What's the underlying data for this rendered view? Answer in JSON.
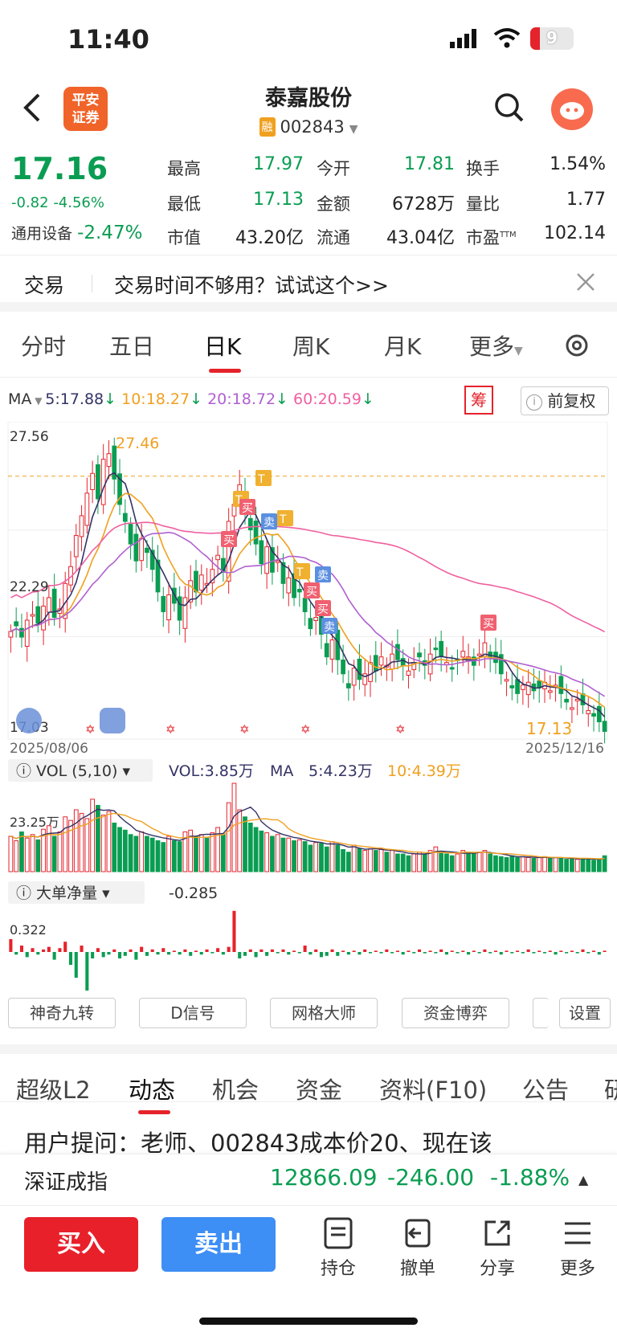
{
  "status": {
    "time": "11:40",
    "battery": "9"
  },
  "header": {
    "title": "泰嘉股份",
    "code": "002843",
    "badge": "融",
    "broker_logo": "平安\n证券"
  },
  "quote": {
    "price": "17.16",
    "change": "-0.82",
    "change_pct": "-4.56%",
    "sector": "通用设备",
    "sector_pct": "-2.47%",
    "high_label": "最高",
    "high": "17.97",
    "low_label": "最低",
    "low": "17.13",
    "mktcap_label": "市值",
    "mktcap": "43.20亿",
    "open_label": "今开",
    "open": "17.81",
    "amount_label": "金额",
    "amount": "6728万",
    "float_label": "流通",
    "float": "43.04亿",
    "turnover_label": "换手",
    "turnover": "1.54%",
    "vol_ratio_label": "量比",
    "vol_ratio": "1.77",
    "pe_label": "市盈",
    "pe_sup": "TTM",
    "pe": "102.14"
  },
  "promo": {
    "label": "交易",
    "text": "交易时间不够用？试试这个>>"
  },
  "ktabs": [
    "分时",
    "五日",
    "日K",
    "周K",
    "月K",
    "更多"
  ],
  "ma": {
    "label": "MA",
    "ma5": "5:17.88",
    "ma10": "10:18.27",
    "ma20": "20:18.72",
    "ma60": "60:20.59",
    "chou": "筹",
    "fq": "前复权"
  },
  "chart_data": {
    "type": "candlestick",
    "y_labels": [
      "27.56",
      "22.29",
      "17.03"
    ],
    "ylim": [
      17.03,
      27.56
    ],
    "high_mark": "27.46",
    "last_mark": "17.13",
    "date_start": "2025/08/06",
    "date_end": "2025/12/16",
    "trade_marks": [
      "T",
      "买",
      "T",
      "卖",
      "T",
      "买",
      "T",
      "卖",
      "买",
      "卖",
      "买"
    ],
    "close": [
      20.7,
      20.9,
      20.5,
      21.1,
      21.3,
      21.0,
      21.6,
      21.9,
      21.2,
      21.5,
      22.4,
      23.0,
      24.1,
      24.8,
      25.6,
      26.3,
      25.4,
      26.8,
      27.0,
      26.1,
      25.2,
      24.6,
      23.8,
      23.2,
      24.0,
      23.5,
      22.9,
      22.1,
      21.4,
      22.0,
      21.7,
      21.1,
      21.9,
      22.5,
      22.1,
      22.7,
      22.4,
      22.9,
      23.4,
      22.8,
      24.6,
      25.2,
      25.9,
      24.9,
      24.3,
      23.8,
      23.1,
      23.7,
      22.8,
      23.2,
      22.4,
      22.6,
      21.9,
      22.1,
      21.4,
      20.8,
      21.2,
      20.6,
      19.8,
      20.4,
      19.7,
      19.2,
      18.7,
      19.4,
      19.0,
      19.2,
      19.6,
      19.3,
      19.8,
      19.5,
      19.9,
      19.7,
      19.5,
      19.3,
      19.6,
      19.8,
      19.5,
      19.9,
      20.1,
      19.8,
      19.6,
      19.4,
      19.7,
      20.0,
      19.8,
      19.5,
      19.9,
      20.3,
      19.8,
      19.6,
      19.2,
      19.0,
      18.7,
      18.5,
      18.8,
      18.9,
      18.6,
      18.7,
      18.9,
      18.6,
      18.8,
      18.5,
      18.2,
      18.0,
      18.3,
      18.1,
      17.9,
      17.7,
      17.5,
      17.16
    ],
    "volume_label": "VOL (5,10)",
    "vol": "VOL:3.85万",
    "vol_ma_label": "MA",
    "vol_ma5": "5:4.23万",
    "vol_ma10": "10:4.39万",
    "vol_axis": "23.25万",
    "volumes": [
      40,
      35,
      45,
      38,
      42,
      36,
      48,
      52,
      40,
      45,
      62,
      58,
      70,
      66,
      60,
      82,
      75,
      64,
      68,
      55,
      50,
      47,
      42,
      40,
      45,
      40,
      38,
      35,
      33,
      40,
      35,
      34,
      45,
      47,
      40,
      42,
      38,
      44,
      50,
      42,
      78,
      100,
      70,
      62,
      55,
      50,
      46,
      44,
      40,
      42,
      38,
      38,
      35,
      36,
      34,
      30,
      33,
      32,
      28,
      34,
      30,
      25,
      22,
      30,
      26,
      24,
      26,
      24,
      26,
      22,
      24,
      20,
      20,
      18,
      20,
      22,
      20,
      24,
      28,
      22,
      20,
      18,
      20,
      24,
      22,
      20,
      22,
      24,
      20,
      18,
      17,
      16,
      18,
      16,
      17,
      16,
      15,
      16,
      17,
      15,
      16,
      15,
      14,
      15,
      14,
      15,
      14,
      13,
      14,
      18
    ],
    "netflow_label": "大单净量",
    "netflow_value": "-0.285",
    "netflow_axis": "0.322",
    "netflow": [
      0.1,
      -0.02,
      0.05,
      -0.04,
      0.03,
      -0.02,
      0.02,
      0.04,
      -0.06,
      0.03,
      0.08,
      -0.1,
      -0.2,
      0.05,
      -0.3,
      -0.05,
      0.03,
      -0.04,
      -0.02,
      0.02,
      -0.05,
      -0.03,
      0.02,
      -0.06,
      0.04,
      -0.03,
      0.02,
      -0.02,
      0.03,
      -0.02,
      0.01,
      -0.02,
      0.02,
      -0.03,
      0.01,
      -0.02,
      0.02,
      -0.01,
      0.03,
      -0.02,
      0.04,
      0.32,
      -0.05,
      -0.03,
      0.02,
      -0.04,
      0.02,
      -0.03,
      0.02,
      -0.01,
      0.02,
      -0.02,
      0.01,
      -0.01,
      0.05,
      -0.02,
      0.02,
      -0.04,
      -0.03,
      0.02,
      -0.03,
      0.01,
      -0.02,
      0.01,
      -0.02,
      0.02,
      -0.01,
      0.01,
      -0.01,
      0.02,
      -0.01,
      0.01,
      -0.02,
      0.01,
      -0.01,
      0.02,
      -0.01,
      0.01,
      -0.01,
      0.02,
      -0.02,
      0.01,
      -0.01,
      0.01,
      -0.02,
      0.01,
      -0.01,
      0.02,
      -0.01,
      0.01,
      -0.02,
      0.01,
      -0.01,
      0.01,
      -0.01,
      0.02,
      -0.01,
      0.01,
      -0.01,
      0.01,
      -0.02,
      0.01,
      -0.01,
      0.01,
      -0.01,
      0.02,
      -0.01,
      0.01,
      -0.02,
      0.01
    ]
  },
  "tool_buttons": [
    "神奇九转",
    "D信号",
    "网格大师",
    "资金博弈",
    "设置"
  ],
  "section_tabs": [
    "超级L2",
    "动态",
    "机会",
    "资金",
    "资料(F10)",
    "公告",
    "研"
  ],
  "news_text": "用户提问：老师、002843成本价20、现在该",
  "index_bar": {
    "name": "深证成指",
    "value": "12866.09",
    "change": "-246.00",
    "pct": "-1.88%"
  },
  "actions": {
    "buy": "买入",
    "sell": "卖出",
    "position": "持仓",
    "cancel": "撤单",
    "share": "分享",
    "more": "更多"
  },
  "colors": {
    "up": "#e5232b",
    "down": "#0a9d52",
    "ma5": "#333366",
    "ma10": "#f0a020",
    "ma20": "#b060d0",
    "ma60": "#f060a0"
  }
}
